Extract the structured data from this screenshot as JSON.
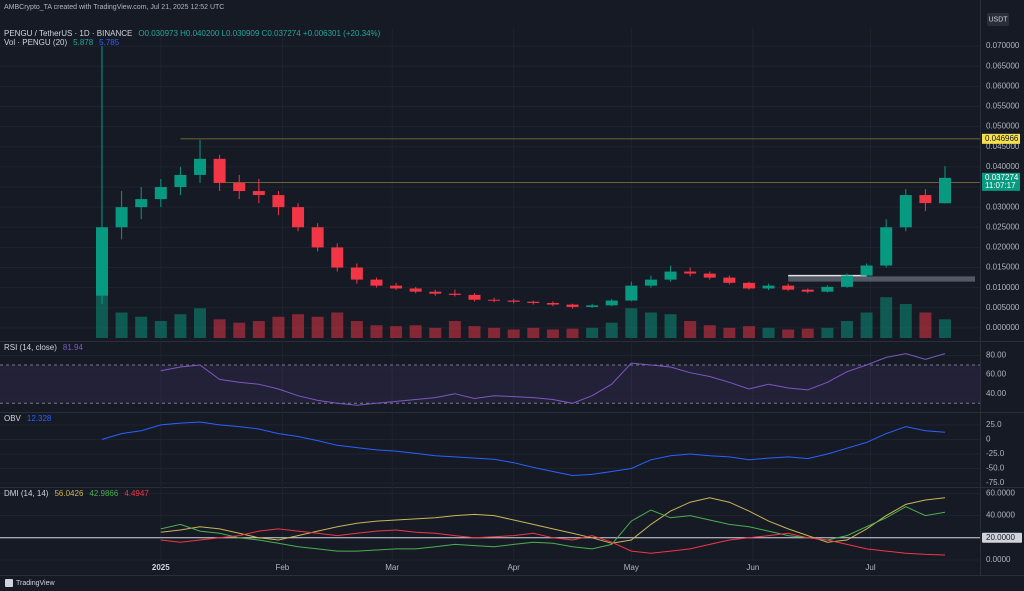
{
  "page": {
    "attribution": "AMBCrypto_TA created with TradingView.com, Jul 21, 2025 12:52 UTC",
    "currency": "USDT",
    "logo": "TradingView"
  },
  "chart_data": [
    {
      "type": "candlestick",
      "symbol": "PENGU / TetherUS · 1D · BINANCE",
      "ohlc_label": "O0.030973 H0.040200 L0.030909 C0.037274 +0.006301 (+20.34%)",
      "volume_label": "Vol · PENGU (20)",
      "volume_readout": [
        "5.878",
        "5.785"
      ],
      "open": [
        0.008,
        0.025,
        0.03,
        0.032,
        0.035,
        0.038,
        0.042,
        0.036,
        0.034,
        0.033,
        0.03,
        0.025,
        0.02,
        0.015,
        0.012,
        0.0105,
        0.0098,
        0.009,
        0.0085,
        0.0082,
        0.007,
        0.0068,
        0.0065,
        0.0062,
        0.0058,
        0.0052,
        0.0056,
        0.0068,
        0.0105,
        0.012,
        0.014,
        0.0135,
        0.0125,
        0.0112,
        0.0098,
        0.0105,
        0.0095,
        0.009,
        0.0102,
        0.013,
        0.0155,
        0.025,
        0.033,
        0.030973
      ],
      "high": [
        0.07,
        0.034,
        0.035,
        0.037,
        0.04,
        0.0467,
        0.043,
        0.038,
        0.037,
        0.034,
        0.031,
        0.026,
        0.021,
        0.016,
        0.0125,
        0.0112,
        0.0102,
        0.0095,
        0.0095,
        0.0086,
        0.0075,
        0.0072,
        0.0068,
        0.0066,
        0.006,
        0.006,
        0.0072,
        0.0115,
        0.013,
        0.0155,
        0.015,
        0.014,
        0.013,
        0.0115,
        0.011,
        0.011,
        0.0098,
        0.0106,
        0.0135,
        0.016,
        0.027,
        0.0345,
        0.0345,
        0.0402
      ],
      "low": [
        0.006,
        0.022,
        0.027,
        0.03,
        0.033,
        0.036,
        0.034,
        0.032,
        0.031,
        0.028,
        0.024,
        0.019,
        0.014,
        0.011,
        0.01,
        0.0094,
        0.0086,
        0.008,
        0.0078,
        0.0066,
        0.0064,
        0.0061,
        0.0058,
        0.0054,
        0.0048,
        0.005,
        0.0054,
        0.0066,
        0.01,
        0.0115,
        0.0128,
        0.012,
        0.0108,
        0.0095,
        0.0094,
        0.0092,
        0.0086,
        0.0088,
        0.01,
        0.0125,
        0.015,
        0.024,
        0.029,
        0.030909
      ],
      "close": [
        0.025,
        0.03,
        0.032,
        0.035,
        0.038,
        0.042,
        0.036,
        0.034,
        0.033,
        0.03,
        0.025,
        0.02,
        0.015,
        0.012,
        0.0105,
        0.0098,
        0.009,
        0.0085,
        0.0082,
        0.007,
        0.0068,
        0.0065,
        0.0062,
        0.0058,
        0.0052,
        0.0056,
        0.0068,
        0.0105,
        0.012,
        0.014,
        0.0135,
        0.0125,
        0.0112,
        0.0098,
        0.0105,
        0.0095,
        0.009,
        0.0102,
        0.013,
        0.0155,
        0.025,
        0.033,
        0.031,
        0.037274
      ],
      "volume": [
        100,
        30,
        25,
        20,
        28,
        35,
        22,
        18,
        20,
        25,
        28,
        25,
        30,
        20,
        15,
        14,
        15,
        12,
        20,
        14,
        12,
        10,
        12,
        10,
        11,
        12,
        18,
        35,
        30,
        28,
        20,
        15,
        12,
        14,
        12,
        10,
        11,
        12,
        20,
        30,
        48,
        40,
        30,
        22
      ],
      "up_color": "#089981",
      "down_color": "#f23645",
      "ylim": [
        -0.003,
        0.074
      ],
      "yticks": [
        {
          "value": 0,
          "label": "0.000000"
        },
        {
          "value": 0.005,
          "label": "0.005000"
        },
        {
          "value": 0.01,
          "label": "0.010000"
        },
        {
          "value": 0.015,
          "label": "0.015000"
        },
        {
          "value": 0.02,
          "label": "0.020000"
        },
        {
          "value": 0.025,
          "label": "0.025000"
        },
        {
          "value": 0.03,
          "label": "0.030000"
        },
        {
          "value": 0.035,
          "label": "0.035000"
        },
        {
          "value": 0.04,
          "label": "0.040000"
        },
        {
          "value": 0.045,
          "label": "0.045000"
        },
        {
          "value": 0.05,
          "label": "0.050000"
        },
        {
          "value": 0.055,
          "label": "0.055000"
        },
        {
          "value": 0.06,
          "label": "0.060000"
        },
        {
          "value": 0.065,
          "label": "0.065000"
        },
        {
          "value": 0.07,
          "label": "0.070000"
        }
      ],
      "xticks": [
        {
          "value": 3,
          "label": "2025"
        },
        {
          "value": 9.2,
          "label": "Feb"
        },
        {
          "value": 14.8,
          "label": "Mar"
        },
        {
          "value": 21,
          "label": "Apr"
        },
        {
          "value": 27,
          "label": "May"
        },
        {
          "value": 33.2,
          "label": "Jun"
        },
        {
          "value": 39.2,
          "label": "Jul"
        }
      ],
      "levels": [
        {
          "value": 0.046966,
          "from": 4,
          "color": "#f7e14b"
        },
        {
          "value": 0.036113,
          "from": 6,
          "color": "#f7e14b"
        }
      ],
      "countdown": "11:07:17",
      "zone": {
        "from": 35,
        "to": 43,
        "low": 0.0115,
        "high": 0.0128
      },
      "support": {
        "from": 35,
        "to": 39,
        "value": 0.013
      }
    },
    {
      "type": "line",
      "title": "RSI (14, close)",
      "color": "#7e57c2",
      "band": [
        30,
        70
      ],
      "values": [
        null,
        null,
        null,
        64,
        68,
        70,
        55,
        52,
        50,
        45,
        38,
        33,
        30,
        28,
        30,
        32,
        34,
        36,
        40,
        35,
        38,
        37,
        36,
        34,
        30,
        38,
        50,
        72,
        70,
        68,
        62,
        58,
        52,
        45,
        50,
        46,
        44,
        52,
        63,
        70,
        78,
        82,
        76,
        81.94
      ],
      "ylim": [
        23,
        92
      ],
      "yticks": [
        {
          "value": 80,
          "label": "80.00"
        },
        {
          "value": 60,
          "label": "60.00"
        },
        {
          "value": 40,
          "label": "40.00"
        }
      ]
    },
    {
      "type": "line",
      "title": "OBV",
      "color": "#2962ff",
      "values": [
        0,
        10,
        15,
        25,
        28,
        30,
        25,
        22,
        18,
        10,
        5,
        -2,
        -10,
        -14,
        -18,
        -20,
        -24,
        -28,
        -30,
        -32,
        -34,
        -40,
        -48,
        -55,
        -62,
        -60,
        -55,
        -50,
        -35,
        -28,
        -25,
        -28,
        -30,
        -35,
        -32,
        -30,
        -33,
        -25,
        -15,
        -5,
        10,
        22,
        15,
        12.328
      ],
      "ylim": [
        -80,
        42
      ],
      "yticks": [
        {
          "value": 25,
          "label": "25.0"
        },
        0,
        {
          "value": -25,
          "label": "-25.0"
        },
        {
          "value": -50,
          "label": "-50.0"
        },
        {
          "value": -75,
          "label": "-75.0"
        }
      ]
    },
    {
      "type": "line",
      "title": "DMI (14, 14)",
      "hline": 20,
      "series": [
        {
          "color": "#c9b458",
          "values": [
            null,
            null,
            null,
            25,
            27,
            30,
            28,
            24,
            20,
            18,
            22,
            26,
            30,
            33,
            35,
            36,
            37,
            38,
            40,
            41,
            40,
            36,
            32,
            28,
            24,
            20,
            15,
            18,
            32,
            44,
            52,
            56,
            52,
            44,
            35,
            28,
            22,
            16,
            18,
            28,
            40,
            50,
            54,
            56.0426
          ]
        },
        {
          "color": "#4caf50",
          "values": [
            null,
            null,
            null,
            28,
            32,
            26,
            24,
            20,
            18,
            15,
            12,
            10,
            8,
            8,
            9,
            10,
            10,
            12,
            14,
            13,
            12,
            14,
            16,
            15,
            12,
            10,
            14,
            35,
            45,
            38,
            40,
            36,
            32,
            30,
            26,
            22,
            20,
            18,
            22,
            30,
            38,
            48,
            40,
            42.9866
          ]
        },
        {
          "color": "#f23645",
          "values": [
            null,
            null,
            null,
            18,
            16,
            18,
            20,
            22,
            26,
            28,
            26,
            24,
            22,
            24,
            26,
            27,
            25,
            24,
            22,
            20,
            21,
            22,
            24,
            20,
            18,
            22,
            16,
            8,
            6,
            8,
            10,
            14,
            18,
            20,
            22,
            24,
            20,
            18,
            14,
            10,
            8,
            6,
            5,
            4.4947
          ]
        }
      ],
      "ylim": [
        0,
        63
      ],
      "yticks": [
        {
          "value": 60,
          "label": "60.0000"
        },
        {
          "value": 40,
          "label": "40.0000"
        },
        {
          "value": 20,
          "label": "20.0000"
        },
        {
          "value": 0,
          "label": "0.0000"
        }
      ]
    }
  ]
}
